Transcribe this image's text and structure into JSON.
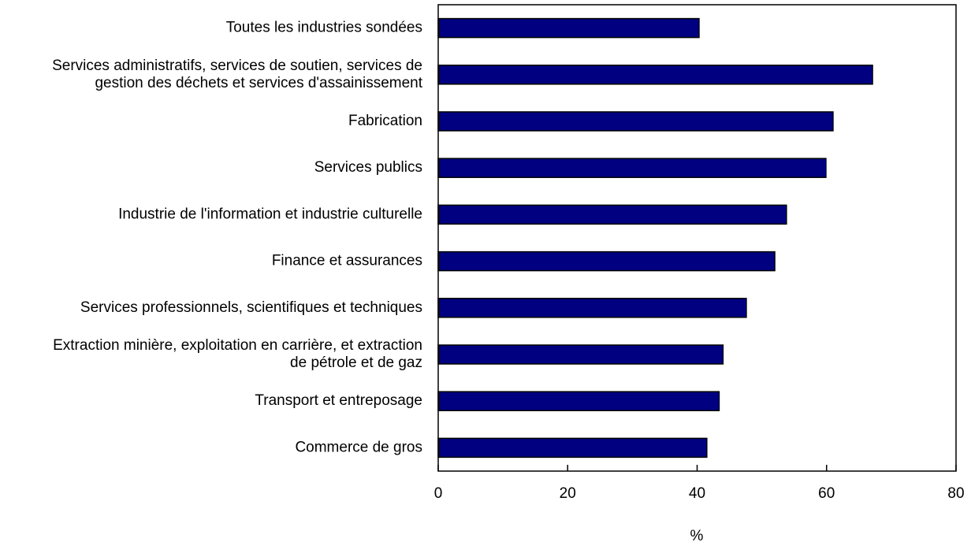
{
  "chart_data": {
    "type": "bar",
    "orientation": "horizontal",
    "categories": [
      [
        "Toutes les industries sondées"
      ],
      [
        "Services administratifs, services de soutien, services de",
        "gestion des déchets et services d'assainissement"
      ],
      [
        "Fabrication"
      ],
      [
        "Services publics"
      ],
      [
        "Industrie de l'information et industrie culturelle"
      ],
      [
        "Finance et assurances"
      ],
      [
        "Services professionnels, scientifiques et techniques"
      ],
      [
        "Extraction minière, exploitation en carrière, et extraction",
        "de pétrole et de gaz"
      ],
      [
        "Transport et entreposage"
      ],
      [
        "Commerce de gros"
      ]
    ],
    "values": [
      40.3,
      67.1,
      61.0,
      59.9,
      53.8,
      52.0,
      47.6,
      44.0,
      43.4,
      41.5
    ],
    "xlabel": "%",
    "xlim": [
      0,
      80
    ],
    "xticks": [
      0,
      20,
      40,
      60,
      80
    ],
    "bar_color": "#000080",
    "grid": false,
    "legend": "none"
  }
}
